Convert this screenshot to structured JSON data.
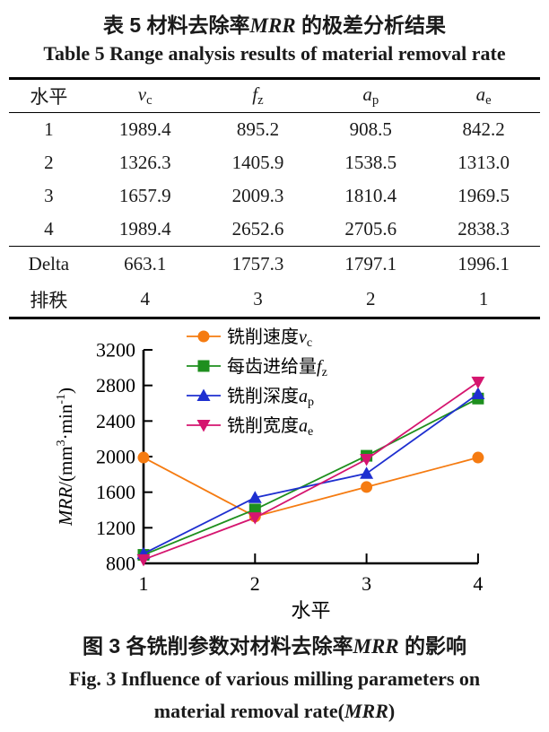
{
  "accent_colors": {
    "axis": "#000000",
    "text": "#1a1a1a",
    "background": "#ffffff"
  },
  "table_caption": {
    "cn_segments": [
      {
        "t": "表 5  材料去除率",
        "s": "n"
      },
      {
        "t": "MRR",
        "s": "bi"
      },
      {
        "t": " 的极差分析结果",
        "s": "n"
      }
    ],
    "en": "Table 5   Range analysis results of material removal rate"
  },
  "table": {
    "headers": [
      {
        "segments": [
          {
            "t": "水平",
            "s": "n"
          }
        ]
      },
      {
        "segments": [
          {
            "t": "v",
            "s": "i"
          },
          {
            "t": "c",
            "s": "sub"
          }
        ]
      },
      {
        "segments": [
          {
            "t": "f",
            "s": "i"
          },
          {
            "t": "z",
            "s": "sub"
          }
        ]
      },
      {
        "segments": [
          {
            "t": "a",
            "s": "i"
          },
          {
            "t": "p",
            "s": "sub"
          }
        ]
      },
      {
        "segments": [
          {
            "t": "a",
            "s": "i"
          },
          {
            "t": "e",
            "s": "sub"
          }
        ]
      }
    ],
    "rows": [
      [
        "1",
        "1989.4",
        "895.2",
        "908.5",
        "842.2"
      ],
      [
        "2",
        "1326.3",
        "1405.9",
        "1538.5",
        "1313.0"
      ],
      [
        "3",
        "1657.9",
        "2009.3",
        "1810.4",
        "1969.5"
      ],
      [
        "4",
        "1989.4",
        "2652.6",
        "2705.6",
        "2838.3"
      ]
    ],
    "footer_rows": [
      [
        "Delta",
        "663.1",
        "1757.3",
        "1797.1",
        "1996.1"
      ],
      [
        "排秩",
        "4",
        "3",
        "2",
        "1"
      ]
    ]
  },
  "chart_data": {
    "type": "line",
    "x": [
      1,
      2,
      3,
      4
    ],
    "series": [
      {
        "name": "铣削速度vc",
        "marker": "circle",
        "color": "#f57b11",
        "label_segments": [
          {
            "t": "铣削速度",
            "s": "n"
          },
          {
            "t": "v",
            "s": "i"
          },
          {
            "t": "c",
            "s": "sub"
          }
        ],
        "values": [
          1989.4,
          1326.3,
          1657.9,
          1989.4
        ]
      },
      {
        "name": "每齿进给量fz",
        "marker": "square",
        "color": "#1e8f1e",
        "label_segments": [
          {
            "t": "每齿进给量",
            "s": "n"
          },
          {
            "t": "f",
            "s": "i"
          },
          {
            "t": "z",
            "s": "sub"
          }
        ],
        "values": [
          895.2,
          1405.9,
          2009.3,
          2652.6
        ]
      },
      {
        "name": "铣削深度ap",
        "marker": "triangle-up",
        "color": "#1e2fd0",
        "label_segments": [
          {
            "t": "铣削深度",
            "s": "n"
          },
          {
            "t": "a",
            "s": "i"
          },
          {
            "t": "p",
            "s": "sub"
          }
        ],
        "values": [
          908.5,
          1538.5,
          1810.4,
          2705.6
        ]
      },
      {
        "name": "铣削宽度ae",
        "marker": "triangle-down",
        "color": "#d5156f",
        "label_segments": [
          {
            "t": "铣削宽度",
            "s": "n"
          },
          {
            "t": "a",
            "s": "i"
          },
          {
            "t": "e",
            "s": "sub"
          }
        ],
        "values": [
          842.2,
          1313.0,
          1969.5,
          2838.3
        ]
      }
    ],
    "xlabel": "水平",
    "ylabel_segments": [
      {
        "t": "MRR",
        "s": "i"
      },
      {
        "t": "/(mm",
        "s": "n"
      },
      {
        "t": "3",
        "s": "sup"
      },
      {
        "t": "·min",
        "s": "n"
      },
      {
        "t": "-1",
        "s": "sup"
      },
      {
        "t": ")",
        "s": "n"
      }
    ],
    "ylim": [
      800,
      3200
    ],
    "yticks": [
      800,
      1200,
      1600,
      2000,
      2400,
      2800,
      3200
    ],
    "xticks": [
      1,
      2,
      3,
      4
    ],
    "grid": false,
    "legend_position": "inside-top-left"
  },
  "figure_caption": {
    "cn_segments": [
      {
        "t": "图 3  各铣削参数对材料去除率",
        "s": "n"
      },
      {
        "t": "MRR",
        "s": "bi"
      },
      {
        "t": " 的影响",
        "s": "n"
      }
    ],
    "en_line1": "Fig. 3   Influence of various milling parameters on",
    "en_line2_segments": [
      {
        "t": "material removal rate(",
        "s": "n"
      },
      {
        "t": "MRR",
        "s": "bi"
      },
      {
        "t": ")",
        "s": "n"
      }
    ]
  }
}
